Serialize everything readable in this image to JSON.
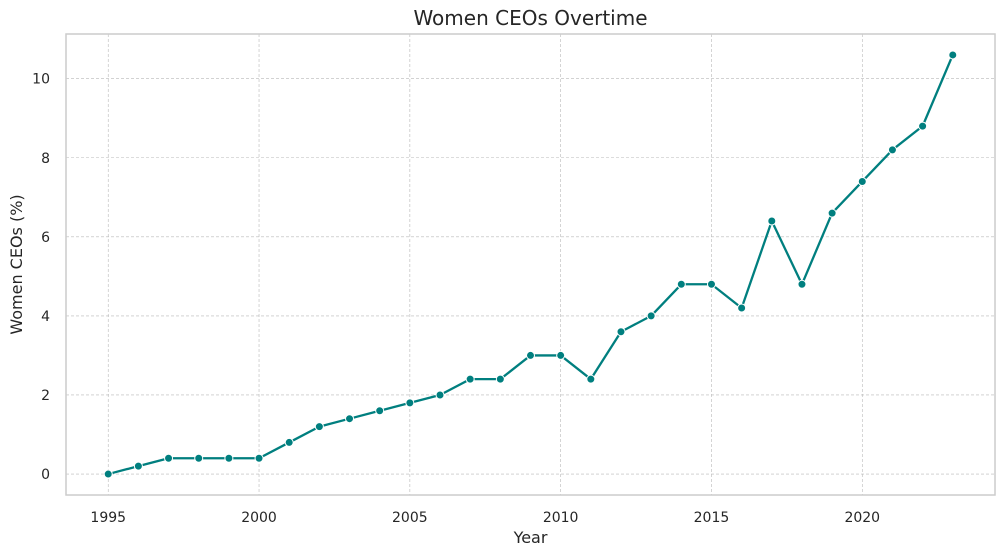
{
  "chart_data": {
    "type": "line",
    "title": "Women CEOs Overtime",
    "xlabel": "Year",
    "ylabel": "Women CEOs (%)",
    "xlim": [
      1993.6,
      2024.4
    ],
    "ylim": [
      -0.53,
      11.13
    ],
    "xticks": [
      1995,
      2000,
      2005,
      2010,
      2015,
      2020
    ],
    "yticks": [
      0,
      2,
      4,
      6,
      8,
      10
    ],
    "grid": true,
    "legend": "none",
    "series": [
      {
        "color": "#007f7f",
        "x": [
          1995,
          1996,
          1997,
          1998,
          1999,
          2000,
          2001,
          2002,
          2003,
          2004,
          2005,
          2006,
          2007,
          2008,
          2009,
          2010,
          2011,
          2012,
          2013,
          2014,
          2015,
          2016,
          2017,
          2018,
          2019,
          2020,
          2021,
          2022,
          2023
        ],
        "y": [
          0.0,
          0.2,
          0.4,
          0.4,
          0.4,
          0.4,
          0.8,
          1.2,
          1.4,
          1.6,
          1.8,
          2.0,
          2.4,
          2.4,
          3.0,
          3.0,
          2.4,
          3.6,
          4.0,
          4.8,
          4.8,
          4.2,
          6.4,
          4.8,
          6.6,
          7.4,
          8.2,
          8.8,
          10.6
        ]
      }
    ]
  }
}
